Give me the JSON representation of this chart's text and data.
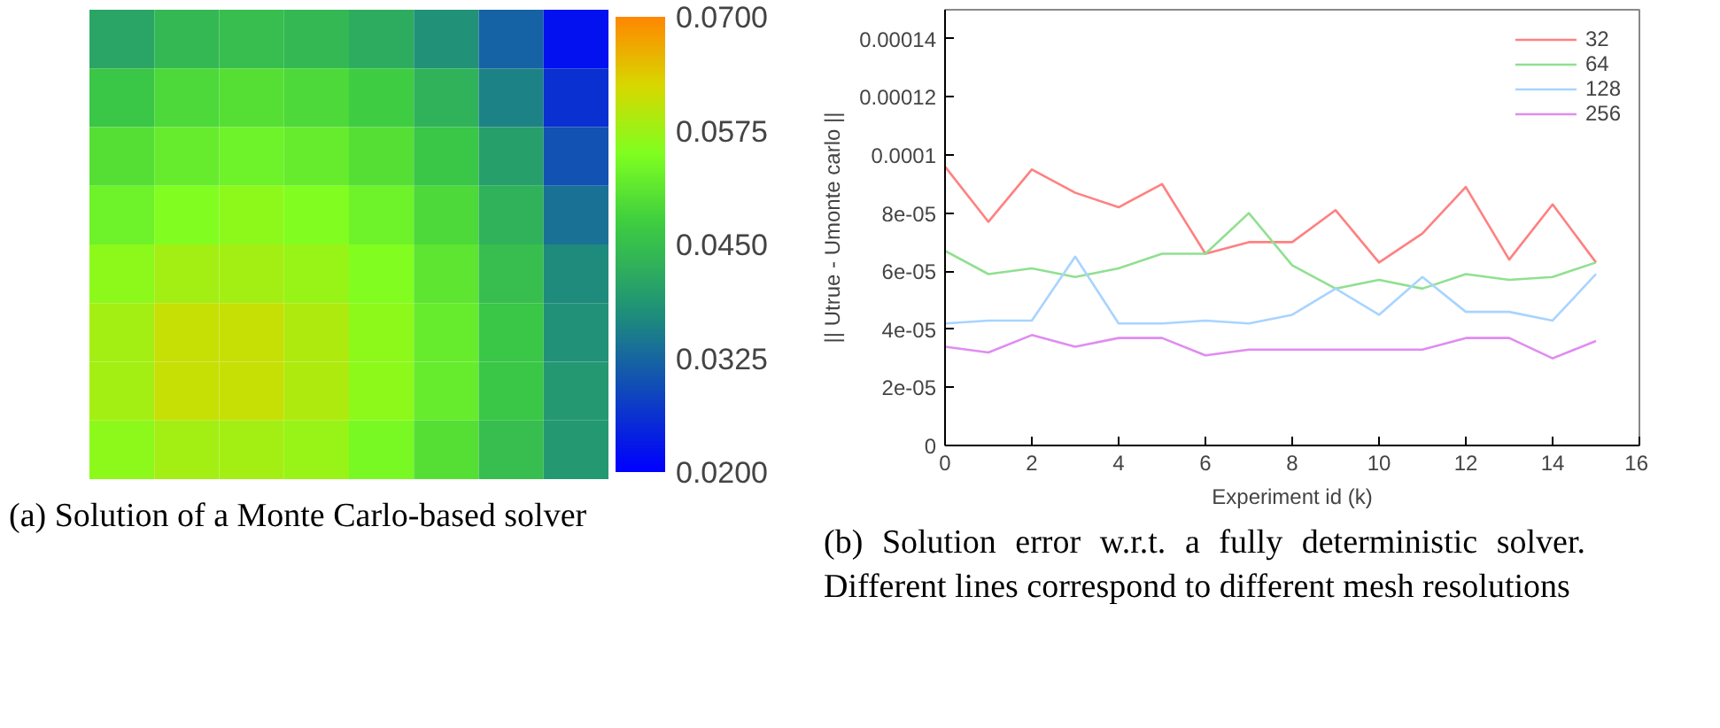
{
  "chart_data": [
    {
      "type": "heatmap",
      "annotations": [
        "(a) Solution of a Monte Carlo-based solver"
      ],
      "categories": [
        null,
        null,
        null,
        null,
        null,
        null,
        null,
        null
      ],
      "y_categories": [
        null,
        null,
        null,
        null,
        null,
        null,
        null,
        null
      ],
      "cells": [
        [
          0.041,
          0.044,
          0.045,
          0.044,
          0.042,
          0.038,
          0.032,
          0.022
        ],
        [
          0.046,
          0.049,
          0.05,
          0.049,
          0.047,
          0.043,
          0.036,
          0.026
        ],
        [
          0.05,
          0.052,
          0.053,
          0.052,
          0.05,
          0.046,
          0.04,
          0.03
        ],
        [
          0.053,
          0.055,
          0.056,
          0.055,
          0.053,
          0.049,
          0.043,
          0.034
        ],
        [
          0.056,
          0.058,
          0.058,
          0.057,
          0.055,
          0.051,
          0.045,
          0.037
        ],
        [
          0.058,
          0.061,
          0.061,
          0.059,
          0.056,
          0.052,
          0.046,
          0.038
        ],
        [
          0.058,
          0.061,
          0.061,
          0.059,
          0.056,
          0.052,
          0.046,
          0.039
        ],
        [
          0.056,
          0.058,
          0.058,
          0.057,
          0.054,
          0.05,
          0.045,
          0.039
        ]
      ],
      "clim": [
        0.02,
        0.07
      ],
      "cticks": [
        {
          "value": 0.02,
          "label": "0.0200"
        },
        {
          "value": 0.0325,
          "label": "0.0325"
        },
        {
          "value": 0.045,
          "label": "0.0450"
        },
        {
          "value": 0.0575,
          "label": "0.0575"
        },
        {
          "value": 0.07,
          "label": "0.0700"
        }
      ]
    },
    {
      "type": "line",
      "annotations": [
        "(b) Solution error w.r.t. a fully deterministic solver. Different lines correspond to different mesh resolutions"
      ],
      "xlabel": "Experiment id (k)",
      "ylabel": "|| Utrue - Umonte carlo ||",
      "x": [
        0,
        1,
        2,
        3,
        4,
        5,
        6,
        7,
        8,
        9,
        10,
        11,
        12,
        13,
        14,
        15
      ],
      "series": [
        {
          "name": "32",
          "color": "#ff8080",
          "values": [
            9.6e-05,
            7.7e-05,
            9.5e-05,
            8.7e-05,
            8.2e-05,
            9e-05,
            6.6e-05,
            7e-05,
            7e-05,
            8.1e-05,
            6.3e-05,
            7.3e-05,
            8.9e-05,
            6.4e-05,
            8.3e-05,
            6.3e-05
          ]
        },
        {
          "name": "64",
          "color": "#90e090",
          "values": [
            6.7e-05,
            5.9e-05,
            6.1e-05,
            5.8e-05,
            6.1e-05,
            6.6e-05,
            6.6e-05,
            8e-05,
            6.2e-05,
            5.4e-05,
            5.7e-05,
            5.4e-05,
            5.9e-05,
            5.7e-05,
            5.8e-05,
            6.3e-05
          ]
        },
        {
          "name": "128",
          "color": "#a8d4ff",
          "values": [
            4.2e-05,
            4.3e-05,
            4.3e-05,
            6.5e-05,
            4.2e-05,
            4.2e-05,
            4.3e-05,
            4.2e-05,
            4.5e-05,
            5.4e-05,
            4.5e-05,
            5.8e-05,
            4.6e-05,
            4.6e-05,
            4.3e-05,
            5.9e-05
          ]
        },
        {
          "name": "256",
          "color": "#e08cf0",
          "values": [
            3.4e-05,
            3.2e-05,
            3.8e-05,
            3.4e-05,
            3.7e-05,
            3.7e-05,
            3.1e-05,
            3.3e-05,
            3.3e-05,
            3.3e-05,
            3.3e-05,
            3.3e-05,
            3.7e-05,
            3.7e-05,
            3e-05,
            3.6e-05
          ]
        }
      ],
      "xlim": [
        0,
        16
      ],
      "xticks": [
        0,
        2,
        4,
        6,
        8,
        10,
        12,
        14,
        16
      ],
      "ylim": [
        0,
        0.00015
      ],
      "yticks": [
        {
          "value": 0,
          "label": "0"
        },
        {
          "value": 2e-05,
          "label": "2e-05"
        },
        {
          "value": 4e-05,
          "label": "4e-05"
        },
        {
          "value": 6e-05,
          "label": "6e-05"
        },
        {
          "value": 8e-05,
          "label": "8e-05"
        },
        {
          "value": 0.0001,
          "label": "0.0001"
        },
        {
          "value": 0.00012,
          "label": "0.00012"
        },
        {
          "value": 0.00014,
          "label": "0.00014"
        }
      ],
      "legend": "top right",
      "grid": false
    }
  ]
}
